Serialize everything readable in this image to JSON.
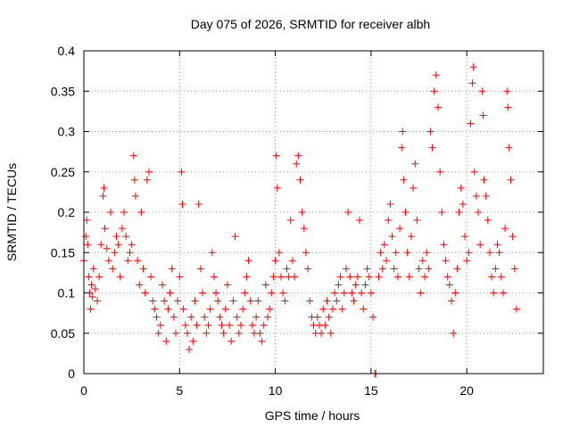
{
  "chart_data": {
    "type": "scatter",
    "title": "Day 075 of 2026, SRMTID for receiver albh",
    "xlabel": "GPS time / hours",
    "ylabel": "SRMTID / TECUs",
    "xlim": [
      0,
      24
    ],
    "ylim": [
      0,
      0.4
    ],
    "xticks": [
      0,
      5,
      10,
      15,
      20
    ],
    "xtick_labels": [
      "0",
      "5",
      "10",
      "15",
      "20"
    ],
    "yticks": [
      0,
      0.05,
      0.1,
      0.15,
      0.2,
      0.25,
      0.3,
      0.35,
      0.4
    ],
    "ytick_labels": [
      "0",
      "0.05",
      "0.1",
      "0.15",
      "0.2",
      "0.25",
      "0.3",
      "0.35",
      "0.4"
    ],
    "grid": true,
    "marker": "+",
    "color": "#ff0000",
    "series": [
      {
        "name": "SRMTID",
        "points": [
          [
            0.0,
            0.14
          ],
          [
            0.1,
            0.17
          ],
          [
            0.15,
            0.19
          ],
          [
            0.2,
            0.16
          ],
          [
            0.25,
            0.12
          ],
          [
            0.3,
            0.1
          ],
          [
            0.35,
            0.08
          ],
          [
            0.4,
            0.11
          ],
          [
            0.45,
            0.095
          ],
          [
            0.5,
            0.13
          ],
          [
            0.6,
            0.105
          ],
          [
            0.7,
            0.09
          ],
          [
            0.8,
            0.12
          ],
          [
            0.9,
            0.16
          ],
          [
            1.0,
            0.22
          ],
          [
            1.05,
            0.23
          ],
          [
            1.1,
            0.18
          ],
          [
            1.2,
            0.155
          ],
          [
            1.3,
            0.14
          ],
          [
            1.4,
            0.2
          ],
          [
            1.5,
            0.13
          ],
          [
            1.6,
            0.15
          ],
          [
            1.7,
            0.17
          ],
          [
            1.8,
            0.16
          ],
          [
            1.9,
            0.12
          ],
          [
            2.0,
            0.18
          ],
          [
            2.1,
            0.2
          ],
          [
            2.2,
            0.17
          ],
          [
            2.3,
            0.14
          ],
          [
            2.4,
            0.15
          ],
          [
            2.5,
            0.16
          ],
          [
            2.6,
            0.27
          ],
          [
            2.65,
            0.24
          ],
          [
            2.7,
            0.22
          ],
          [
            2.8,
            0.14
          ],
          [
            2.9,
            0.11
          ],
          [
            3.0,
            0.2
          ],
          [
            3.1,
            0.13
          ],
          [
            3.2,
            0.1
          ],
          [
            3.3,
            0.24
          ],
          [
            3.4,
            0.25
          ],
          [
            3.5,
            0.12
          ],
          [
            3.6,
            0.09
          ],
          [
            3.7,
            0.08
          ],
          [
            3.8,
            0.07
          ],
          [
            3.9,
            0.05
          ],
          [
            4.0,
            0.06
          ],
          [
            4.1,
            0.11
          ],
          [
            4.2,
            0.09
          ],
          [
            4.3,
            0.04
          ],
          [
            4.4,
            0.08
          ],
          [
            4.5,
            0.1
          ],
          [
            4.6,
            0.13
          ],
          [
            4.7,
            0.07
          ],
          [
            4.8,
            0.05
          ],
          [
            4.9,
            0.09
          ],
          [
            5.0,
            0.12
          ],
          [
            5.1,
            0.25
          ],
          [
            5.15,
            0.21
          ],
          [
            5.2,
            0.08
          ],
          [
            5.3,
            0.06
          ],
          [
            5.4,
            0.05
          ],
          [
            5.5,
            0.03
          ],
          [
            5.6,
            0.07
          ],
          [
            5.7,
            0.04
          ],
          [
            5.8,
            0.09
          ],
          [
            5.9,
            0.06
          ],
          [
            6.0,
            0.21
          ],
          [
            6.1,
            0.13
          ],
          [
            6.2,
            0.1
          ],
          [
            6.3,
            0.07
          ],
          [
            6.4,
            0.05
          ],
          [
            6.5,
            0.06
          ],
          [
            6.6,
            0.08
          ],
          [
            6.7,
            0.15
          ],
          [
            6.8,
            0.12
          ],
          [
            6.9,
            0.1
          ],
          [
            7.0,
            0.09
          ],
          [
            7.1,
            0.07
          ],
          [
            7.2,
            0.06
          ],
          [
            7.3,
            0.05
          ],
          [
            7.4,
            0.08
          ],
          [
            7.5,
            0.11
          ],
          [
            7.6,
            0.06
          ],
          [
            7.7,
            0.04
          ],
          [
            7.8,
            0.09
          ],
          [
            7.9,
            0.17
          ],
          [
            8.0,
            0.07
          ],
          [
            8.1,
            0.05
          ],
          [
            8.2,
            0.06
          ],
          [
            8.3,
            0.08
          ],
          [
            8.4,
            0.1
          ],
          [
            8.5,
            0.12
          ],
          [
            8.6,
            0.14
          ],
          [
            8.7,
            0.09
          ],
          [
            8.8,
            0.06
          ],
          [
            8.9,
            0.05
          ],
          [
            9.0,
            0.07
          ],
          [
            9.1,
            0.09
          ],
          [
            9.2,
            0.05
          ],
          [
            9.3,
            0.04
          ],
          [
            9.4,
            0.06
          ],
          [
            9.5,
            0.11
          ],
          [
            9.6,
            0.07
          ],
          [
            9.7,
            0.08
          ],
          [
            9.8,
            0.1
          ],
          [
            9.9,
            0.12
          ],
          [
            10.0,
            0.14
          ],
          [
            10.05,
            0.27
          ],
          [
            10.1,
            0.23
          ],
          [
            10.2,
            0.15
          ],
          [
            10.3,
            0.12
          ],
          [
            10.4,
            0.1
          ],
          [
            10.5,
            0.09
          ],
          [
            10.6,
            0.13
          ],
          [
            10.7,
            0.12
          ],
          [
            10.8,
            0.19
          ],
          [
            10.9,
            0.14
          ],
          [
            11.0,
            0.12
          ],
          [
            11.1,
            0.26
          ],
          [
            11.2,
            0.27
          ],
          [
            11.3,
            0.24
          ],
          [
            11.4,
            0.2
          ],
          [
            11.5,
            0.18
          ],
          [
            11.6,
            0.15
          ],
          [
            11.7,
            0.13
          ],
          [
            11.8,
            0.09
          ],
          [
            11.9,
            0.07
          ],
          [
            12.0,
            0.06
          ],
          [
            12.1,
            0.05
          ],
          [
            12.2,
            0.07
          ],
          [
            12.3,
            0.06
          ],
          [
            12.4,
            0.05
          ],
          [
            12.5,
            0.08
          ],
          [
            12.6,
            0.06
          ],
          [
            12.7,
            0.09
          ],
          [
            12.8,
            0.07
          ],
          [
            12.9,
            0.05
          ],
          [
            13.0,
            0.08
          ],
          [
            13.1,
            0.1
          ],
          [
            13.2,
            0.09
          ],
          [
            13.3,
            0.11
          ],
          [
            13.4,
            0.12
          ],
          [
            13.5,
            0.08
          ],
          [
            13.6,
            0.1
          ],
          [
            13.7,
            0.13
          ],
          [
            13.8,
            0.2
          ],
          [
            13.9,
            0.12
          ],
          [
            14.0,
            0.1
          ],
          [
            14.1,
            0.09
          ],
          [
            14.2,
            0.11
          ],
          [
            14.3,
            0.12
          ],
          [
            14.4,
            0.19
          ],
          [
            14.5,
            0.1
          ],
          [
            14.6,
            0.08
          ],
          [
            14.7,
            0.11
          ],
          [
            14.8,
            0.13
          ],
          [
            14.9,
            0.12
          ],
          [
            15.0,
            0.1
          ],
          [
            15.1,
            0.07
          ],
          [
            15.2,
            0.0
          ],
          [
            15.25,
            0.0
          ],
          [
            15.4,
            0.12
          ],
          [
            15.5,
            0.15
          ],
          [
            15.6,
            0.13
          ],
          [
            15.7,
            0.16
          ],
          [
            15.8,
            0.14
          ],
          [
            15.9,
            0.19
          ],
          [
            16.0,
            0.21
          ],
          [
            16.1,
            0.17
          ],
          [
            16.2,
            0.13
          ],
          [
            16.3,
            0.15
          ],
          [
            16.4,
            0.12
          ],
          [
            16.5,
            0.18
          ],
          [
            16.6,
            0.28
          ],
          [
            16.65,
            0.3
          ],
          [
            16.7,
            0.24
          ],
          [
            16.8,
            0.2
          ],
          [
            16.9,
            0.15
          ],
          [
            17.0,
            0.12
          ],
          [
            17.1,
            0.17
          ],
          [
            17.2,
            0.23
          ],
          [
            17.3,
            0.26
          ],
          [
            17.4,
            0.19
          ],
          [
            17.5,
            0.13
          ],
          [
            17.6,
            0.1
          ],
          [
            17.7,
            0.14
          ],
          [
            17.8,
            0.12
          ],
          [
            17.9,
            0.15
          ],
          [
            18.0,
            0.13
          ],
          [
            18.1,
            0.3
          ],
          [
            18.2,
            0.28
          ],
          [
            18.3,
            0.35
          ],
          [
            18.4,
            0.37
          ],
          [
            18.5,
            0.33
          ],
          [
            18.6,
            0.25
          ],
          [
            18.7,
            0.2
          ],
          [
            18.8,
            0.16
          ],
          [
            18.9,
            0.14
          ],
          [
            19.0,
            0.12
          ],
          [
            19.1,
            0.11
          ],
          [
            19.2,
            0.09
          ],
          [
            19.3,
            0.05
          ],
          [
            19.4,
            0.1
          ],
          [
            19.5,
            0.13
          ],
          [
            19.6,
            0.2
          ],
          [
            19.7,
            0.23
          ],
          [
            19.8,
            0.21
          ],
          [
            19.9,
            0.17
          ],
          [
            20.0,
            0.14
          ],
          [
            20.1,
            0.15
          ],
          [
            20.2,
            0.31
          ],
          [
            20.3,
            0.36
          ],
          [
            20.35,
            0.38
          ],
          [
            20.4,
            0.25
          ],
          [
            20.5,
            0.22
          ],
          [
            20.6,
            0.2
          ],
          [
            20.7,
            0.16
          ],
          [
            20.8,
            0.35
          ],
          [
            20.85,
            0.32
          ],
          [
            20.9,
            0.24
          ],
          [
            21.0,
            0.22
          ],
          [
            21.1,
            0.19
          ],
          [
            21.2,
            0.15
          ],
          [
            21.3,
            0.12
          ],
          [
            21.4,
            0.1
          ],
          [
            21.5,
            0.13
          ],
          [
            21.6,
            0.16
          ],
          [
            21.7,
            0.15
          ],
          [
            21.8,
            0.12
          ],
          [
            21.9,
            0.1
          ],
          [
            22.0,
            0.18
          ],
          [
            22.1,
            0.35
          ],
          [
            22.15,
            0.33
          ],
          [
            22.2,
            0.28
          ],
          [
            22.3,
            0.24
          ],
          [
            22.4,
            0.17
          ],
          [
            22.5,
            0.13
          ],
          [
            22.6,
            0.08
          ]
        ]
      }
    ]
  }
}
